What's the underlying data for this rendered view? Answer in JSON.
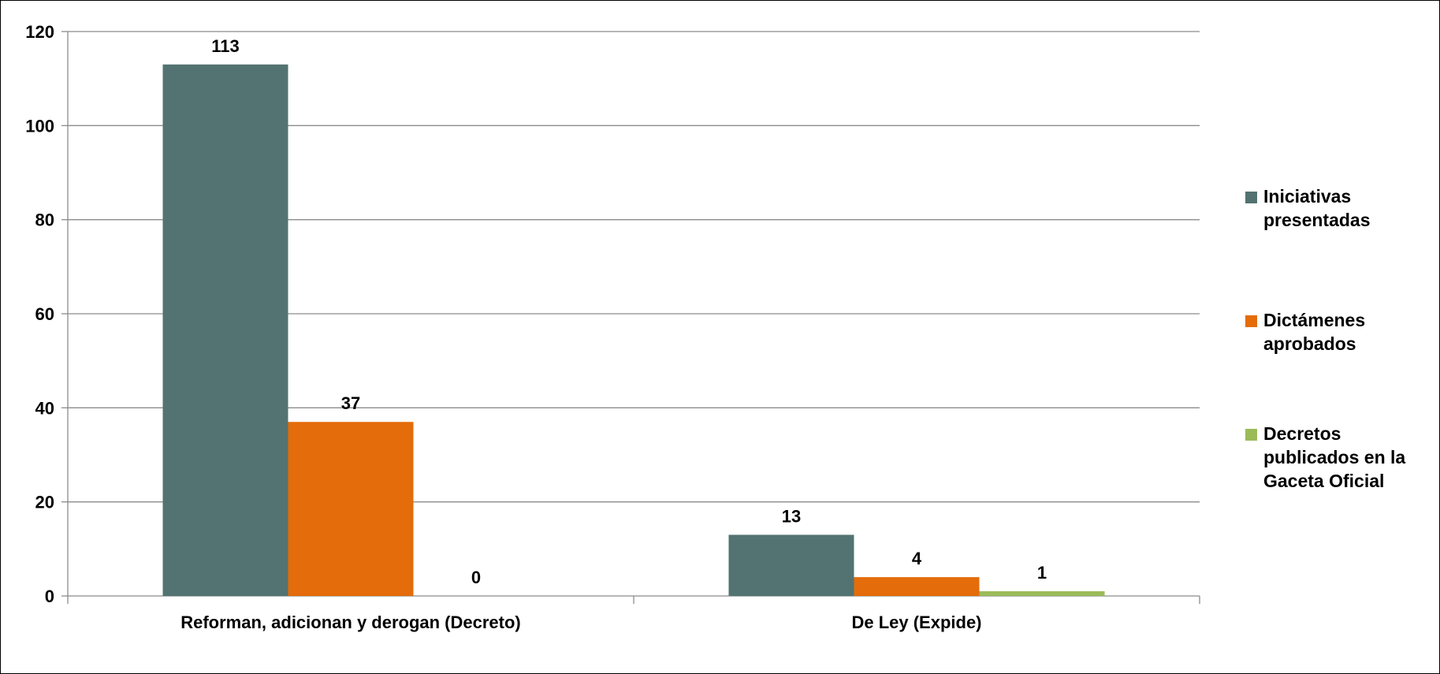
{
  "chart_data": {
    "type": "bar",
    "categories": [
      "Reforman, adicionan y derogan (Decreto)",
      "De Ley (Expide)"
    ],
    "series": [
      {
        "name": "Iniciativas presentadas",
        "legend_lines": [
          "Iniciativas",
          "presentadas"
        ],
        "color": "#527372",
        "values": [
          113,
          13
        ]
      },
      {
        "name": "Dictámenes aprobados",
        "legend_lines": [
          "Dictámenes",
          "aprobados"
        ],
        "color": "#E46C0A",
        "values": [
          37,
          4
        ]
      },
      {
        "name": "Decretos publicados en la Gaceta Oficial",
        "legend_lines": [
          "Decretos",
          "publicados en la",
          "Gaceta Oficial"
        ],
        "color": "#9BBB59",
        "values": [
          0,
          1
        ]
      }
    ],
    "ylim": [
      0,
      120
    ],
    "yticks": [
      0,
      20,
      40,
      60,
      80,
      100,
      120
    ],
    "data_labels": true,
    "grid": true,
    "legend_position": "right"
  }
}
